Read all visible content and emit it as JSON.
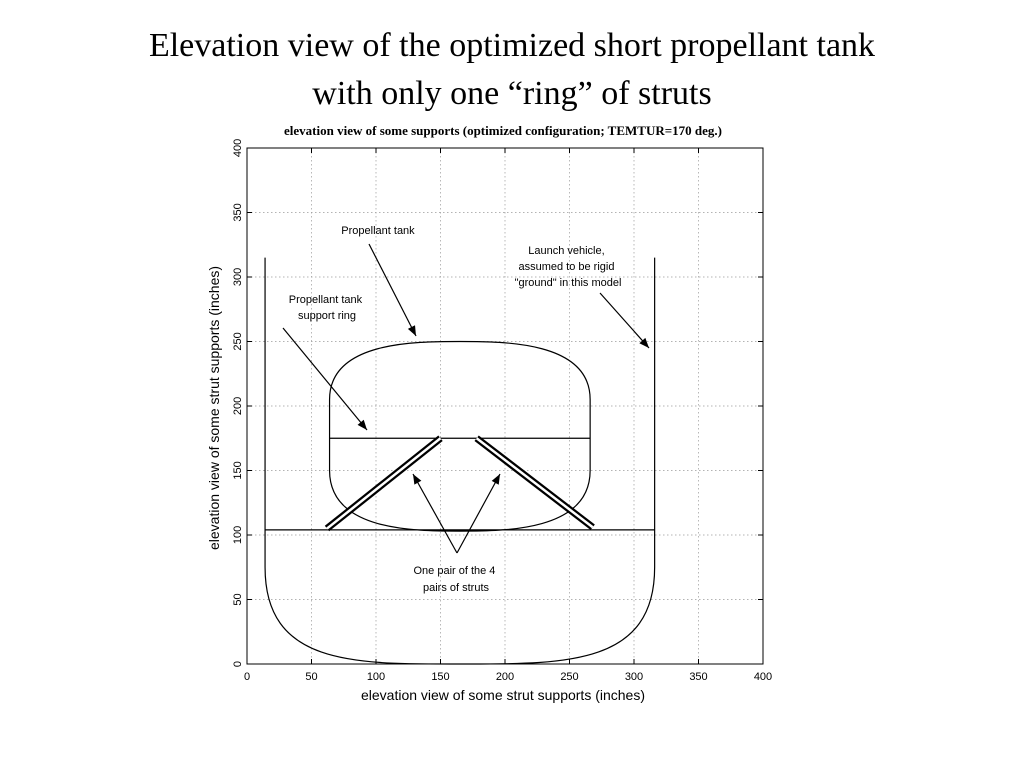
{
  "slide": {
    "title_line1": "Elevation view of the optimized short propellant tank",
    "title_line2": "with only one “ring” of struts"
  },
  "chart_data": {
    "type": "diagram",
    "title": "elevation view of some supports (optimized configuration;   TEMTUR=170 deg.)",
    "xlabel": "elevation view of some strut supports (inches)",
    "ylabel": "elevation view of some strut supports (inches)",
    "xlim": [
      0,
      400
    ],
    "ylim": [
      0,
      400
    ],
    "xticks": [
      0,
      50,
      100,
      150,
      200,
      250,
      300,
      350,
      400
    ],
    "yticks": [
      0,
      50,
      100,
      150,
      200,
      250,
      300,
      350,
      400
    ],
    "grid": true,
    "tick_labels": {
      "x": [
        "0",
        "50",
        "100",
        "150",
        "200",
        "250",
        "300",
        "350",
        "400"
      ],
      "y": [
        "0",
        "50",
        "100",
        "150",
        "200",
        "250",
        "300",
        "350",
        "400"
      ]
    },
    "annotations": {
      "propellant_tank": [
        "Propellant tank"
      ],
      "support_ring": [
        "Propellant tank",
        "support ring"
      ],
      "launch_vehicle": [
        "Launch vehicle,",
        "assumed to be rigid",
        "\"ground\" in this model"
      ],
      "struts": [
        "One pair of the 4",
        "pairs of struts"
      ]
    },
    "geometry": {
      "launch_vehicle_walls_x": [
        14,
        316
      ],
      "launch_vehicle_top_y": 315,
      "launch_vehicle_straight_bottom_y": 75,
      "launch_vehicle_bottom_y": 0,
      "tank": {
        "x_left": 64,
        "x_right": 266,
        "center_x": 165,
        "y_top": 250,
        "y_bottom": 103,
        "cyl_top_y": 205,
        "cyl_bottom_y": 150
      },
      "support_ring_y": 175,
      "horizontal_line_y": 104,
      "struts": [
        {
          "from": [
            62,
            105
          ],
          "to": [
            150,
            175
          ]
        },
        {
          "from": [
            178,
            175
          ],
          "to": [
            268,
            106
          ]
        }
      ]
    }
  }
}
